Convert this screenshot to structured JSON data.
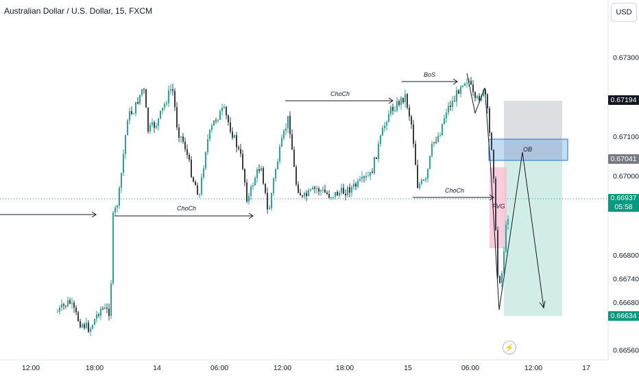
{
  "header": {
    "title": "Australian Dollar / U.S. Dollar, 15, FXCM"
  },
  "currency_button": {
    "label": "USD"
  },
  "price_badges": [
    {
      "label": "0.67194",
      "bg": "#131722"
    },
    {
      "label": "0.67041",
      "bg": "#787b86"
    },
    {
      "label": "0.66937",
      "countdown": "05:58",
      "bg": "#089981"
    },
    {
      "label": "0.66634",
      "bg": "#089981"
    }
  ],
  "events": {
    "icon": "lightning-bolt-icon",
    "color": "#e0465e"
  },
  "chart_data": {
    "type": "candlestick",
    "symbol": "AUDUSD",
    "interval": "15",
    "exchange": "FXCM",
    "y_axis": {
      "ticks": [
        0.673,
        0.671,
        0.67,
        0.668,
        0.6674,
        0.6668,
        0.6656
      ],
      "tick_labels": [
        "0.67300",
        "0.67100",
        "0.67000",
        "0.66800",
        "0.66740",
        "0.66680",
        "0.66560"
      ],
      "range": [
        0.6654,
        0.6736
      ]
    },
    "x_axis": {
      "tick_labels": [
        "12:00",
        "18:00",
        "14",
        "06:00",
        "12:00",
        "18:00",
        "15",
        "06:00",
        "12:00",
        "17"
      ]
    },
    "current_price": 0.66937,
    "colors": {
      "up": "#26a69a",
      "down": "#363a45",
      "annotation": "#131722"
    },
    "annotations": [
      {
        "type": "label",
        "text": "ChoCh"
      },
      {
        "type": "label",
        "text": "ChoCh"
      },
      {
        "type": "label",
        "text": "BoS"
      },
      {
        "type": "label",
        "text": "ChoCh"
      },
      {
        "type": "zone",
        "text": "OB",
        "top": 0.6709,
        "bottom": 0.6704,
        "color": "#4a8fd8"
      },
      {
        "type": "zone",
        "text": "FVG",
        "color": "#f8bbd0"
      },
      {
        "type": "position",
        "direction": "short",
        "entry": 0.67041,
        "stop": 0.67194,
        "target": 0.66634
      }
    ]
  }
}
